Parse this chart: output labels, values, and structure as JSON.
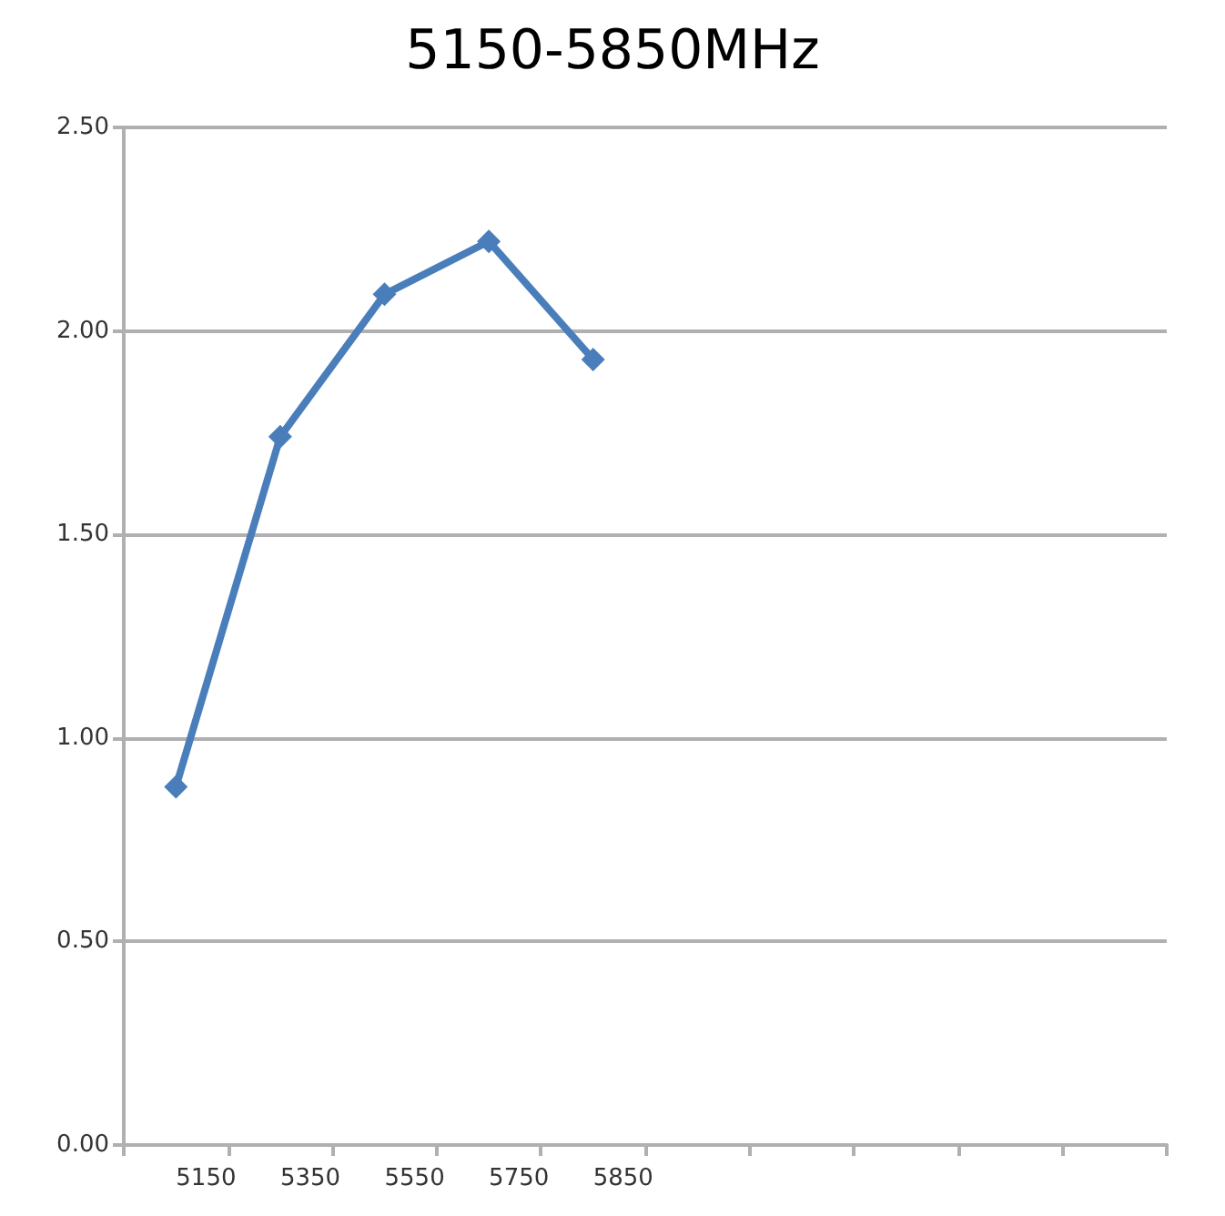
{
  "chart_data": {
    "type": "line",
    "title": "5150-5850MHz",
    "categories": [
      "5150",
      "5350",
      "5550",
      "5750",
      "5850",
      null,
      null,
      null,
      null,
      null
    ],
    "series": [
      {
        "color": "#4a7ebb",
        "values": [
          0.88,
          1.74,
          2.09,
          2.22,
          1.93,
          null,
          null,
          null,
          null,
          null
        ]
      }
    ],
    "ylim": [
      0,
      2.5
    ],
    "yticks": [
      {
        "value": 0,
        "label": "0.00"
      },
      {
        "value": 0.5,
        "label": "0.50"
      },
      {
        "value": 1,
        "label": "1.00"
      },
      {
        "value": 1.5,
        "label": "1.50"
      },
      {
        "value": 2,
        "label": "2.00"
      },
      {
        "value": 2.5,
        "label": "2.50"
      }
    ],
    "grid": "y",
    "marker": "diamond",
    "line_style": "solid"
  }
}
